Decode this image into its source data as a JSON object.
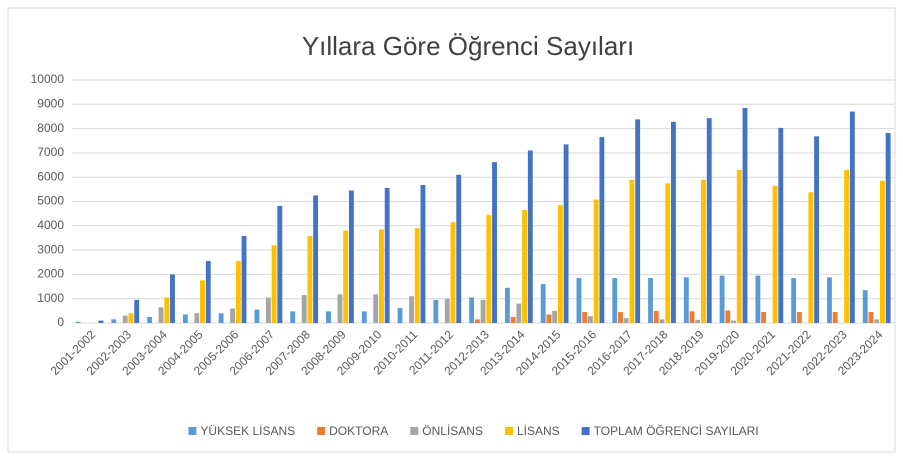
{
  "chart_data": {
    "type": "bar",
    "title": "Yıllara Göre Öğrenci Sayıları",
    "categories": [
      "2001-2002",
      "2002-2003",
      "2003-2004",
      "2004-2005",
      "2005-2006",
      "2006-2007",
      "2007-2008",
      "2008-2009",
      "2009-2010",
      "2010-2011",
      "2011-2012",
      "2012-2013",
      "2013-2014",
      "2014-2015",
      "2015-2016",
      "2016-2017",
      "2017-2018",
      "2018-2019",
      "2019-2020",
      "2020-2021",
      "2021-2022",
      "2022-2023",
      "2023-2024"
    ],
    "series": [
      {
        "name": "YÜKSEK LİSANS",
        "color": "#5b9bd5",
        "values": [
          50,
          150,
          250,
          350,
          400,
          550,
          480,
          480,
          480,
          620,
          950,
          1050,
          1450,
          1600,
          1850,
          1850,
          1850,
          1880,
          1950,
          1950,
          1850,
          1880,
          1350
        ]
      },
      {
        "name": "DOKTORA",
        "color": "#ed7d31",
        "values": [
          0,
          0,
          0,
          0,
          0,
          0,
          0,
          0,
          0,
          0,
          0,
          150,
          250,
          350,
          450,
          450,
          500,
          480,
          520,
          450,
          450,
          450,
          450
        ]
      },
      {
        "name": "ÖNLİSANS",
        "color": "#a5a5a5",
        "values": [
          0,
          300,
          650,
          400,
          600,
          1050,
          1150,
          1180,
          1180,
          1100,
          1000,
          950,
          800,
          500,
          280,
          200,
          150,
          130,
          100,
          0,
          0,
          0,
          150
        ]
      },
      {
        "name": "LİSANS",
        "color": "#ffc000",
        "values": [
          0,
          400,
          1050,
          1750,
          2550,
          3200,
          3580,
          3800,
          3850,
          3900,
          4150,
          4450,
          4650,
          4850,
          5080,
          5900,
          5750,
          5900,
          6300,
          5650,
          5380,
          6300,
          5850
        ]
      },
      {
        "name": "TOPLAM ÖĞRENCİ SAYILARI",
        "color": "#4472c4",
        "values": [
          100,
          950,
          2000,
          2550,
          3580,
          4820,
          5250,
          5450,
          5560,
          5680,
          6100,
          6620,
          7100,
          7350,
          7650,
          8380,
          8280,
          8430,
          8850,
          8030,
          7680,
          8700,
          7820
        ]
      }
    ],
    "ylim": [
      0,
      10000
    ],
    "yticks": [
      0,
      1000,
      2000,
      3000,
      4000,
      5000,
      6000,
      7000,
      8000,
      9000,
      10000
    ],
    "grid": true,
    "legend": "bottom"
  }
}
